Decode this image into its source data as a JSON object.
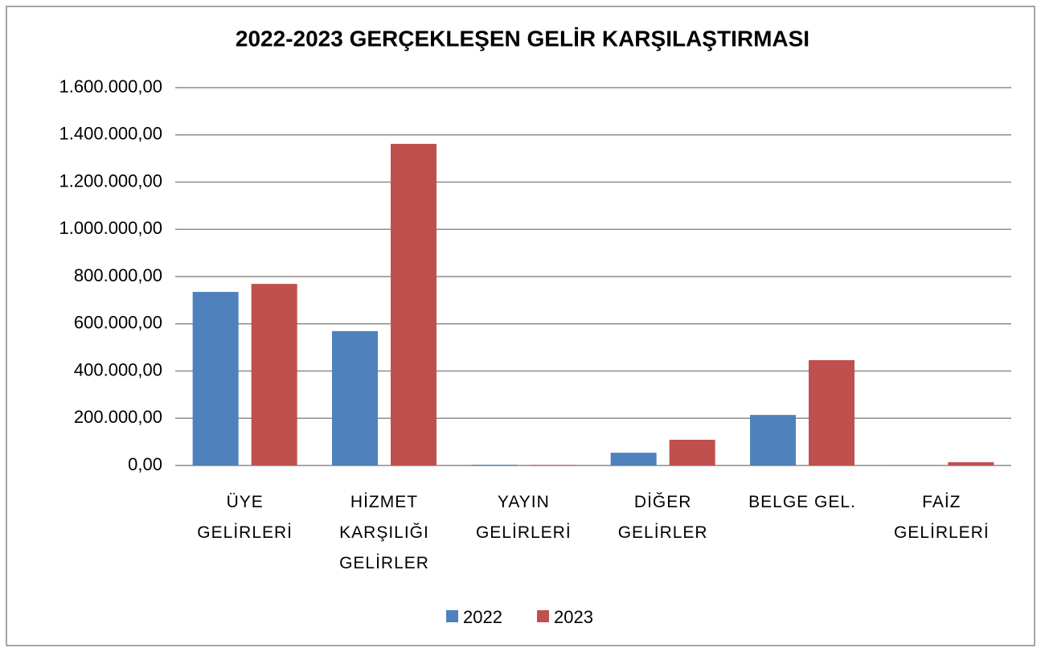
{
  "chart_data": {
    "type": "bar",
    "title": "2022-2023 GERÇEKLEŞEN GELİR KARŞILAŞTIRMASI",
    "categories": [
      "ÜYE GELİRLERİ",
      "HİZMET KARŞILIĞI GELİRLER",
      "YAYIN GELİRLERİ",
      "DİĞER GELİRLER",
      "BELGE GEL.",
      "FAİZ GELİRLERİ"
    ],
    "series": [
      {
        "name": "2022",
        "color": "#4f81bd",
        "values": [
          735000,
          569000,
          3000,
          54000,
          214000,
          1000
        ]
      },
      {
        "name": "2023",
        "color": "#c0504d",
        "values": [
          769000,
          1362000,
          2000,
          109000,
          446000,
          14000
        ]
      }
    ],
    "ylim": [
      0,
      1600000
    ],
    "yticks": [
      {
        "value": 0,
        "label": "0,00"
      },
      {
        "value": 200000,
        "label": "200.000,00"
      },
      {
        "value": 400000,
        "label": "400.000,00"
      },
      {
        "value": 600000,
        "label": "600.000,00"
      },
      {
        "value": 800000,
        "label": "800.000,00"
      },
      {
        "value": 1000000,
        "label": "1.000.000,00"
      },
      {
        "value": 1200000,
        "label": "1.200.000,00"
      },
      {
        "value": 1400000,
        "label": "1.400.000,00"
      },
      {
        "value": 1600000,
        "label": "1.600.000,00"
      }
    ],
    "grid": true,
    "legend": "bottom"
  }
}
